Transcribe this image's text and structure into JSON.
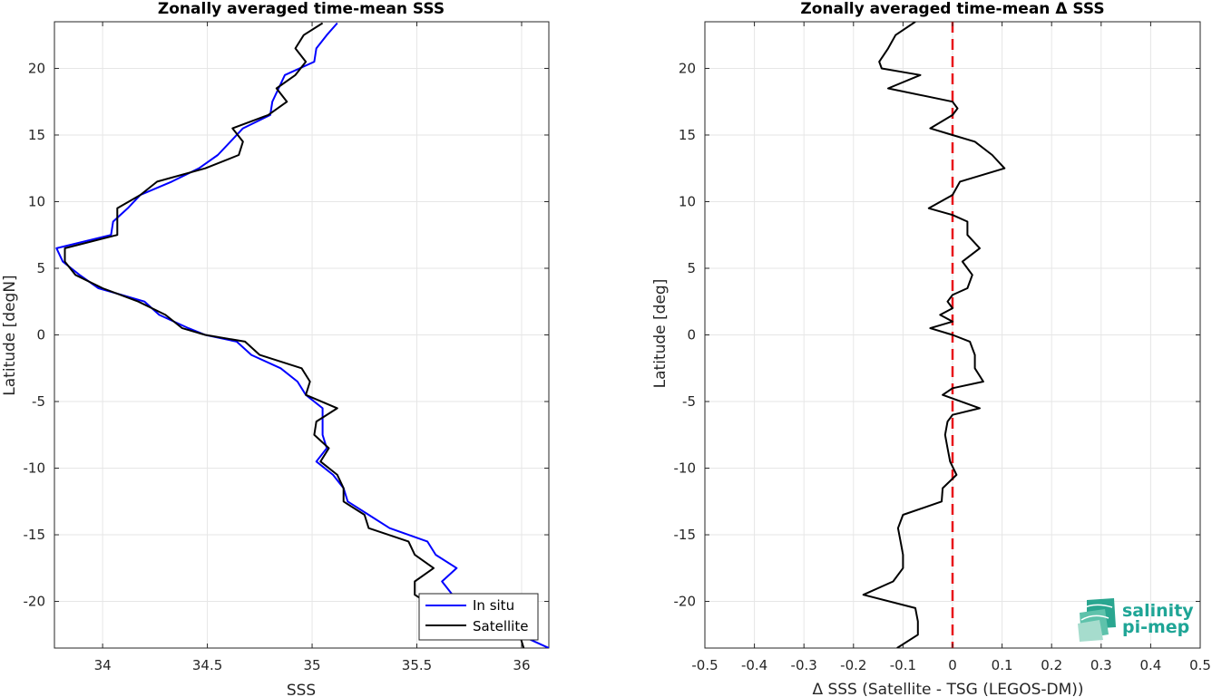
{
  "chart_data": [
    {
      "type": "line",
      "title": "Zonally averaged time-mean SSS",
      "xlabel": "SSS",
      "ylabel": "Latitude [degN]",
      "xlim": [
        33.77,
        36.13
      ],
      "ylim": [
        -23.5,
        23.5
      ],
      "xticks": [
        34,
        34.5,
        35,
        35.5,
        36
      ],
      "xtick_labels": [
        "34",
        "34.5",
        "35",
        "35.5",
        "36"
      ],
      "yticks": [
        -20,
        -15,
        -10,
        -5,
        0,
        5,
        10,
        15,
        20
      ],
      "ytick_labels": [
        "-20",
        "-15",
        "-10",
        "-5",
        "0",
        "5",
        "10",
        "15",
        "20"
      ],
      "grid": true,
      "legend": "bottom-right",
      "series": [
        {
          "name": "In situ",
          "color": "#0000ff",
          "points": [
            [
              35.12,
              23.4
            ],
            [
              35.07,
              22.5
            ],
            [
              35.02,
              21.5
            ],
            [
              35.01,
              20.5
            ],
            [
              34.87,
              19.5
            ],
            [
              34.84,
              18.5
            ],
            [
              34.81,
              17.5
            ],
            [
              34.8,
              16.5
            ],
            [
              34.67,
              15.5
            ],
            [
              34.61,
              14.5
            ],
            [
              34.55,
              13.5
            ],
            [
              34.46,
              12.5
            ],
            [
              34.33,
              11.5
            ],
            [
              34.18,
              10.5
            ],
            [
              34.12,
              9.5
            ],
            [
              34.05,
              8.5
            ],
            [
              34.04,
              7.5
            ],
            [
              33.78,
              6.5
            ],
            [
              33.81,
              5.5
            ],
            [
              33.89,
              4.5
            ],
            [
              33.98,
              3.5
            ],
            [
              34.2,
              2.5
            ],
            [
              34.27,
              1.5
            ],
            [
              34.41,
              0.5
            ],
            [
              34.49,
              0.0
            ],
            [
              34.64,
              -0.5
            ],
            [
              34.71,
              -1.5
            ],
            [
              34.85,
              -2.5
            ],
            [
              34.93,
              -3.5
            ],
            [
              34.97,
              -4.5
            ],
            [
              35.05,
              -5.5
            ],
            [
              35.05,
              -6.5
            ],
            [
              35.05,
              -7.5
            ],
            [
              35.07,
              -8.5
            ],
            [
              35.02,
              -9.5
            ],
            [
              35.1,
              -10.5
            ],
            [
              35.15,
              -11.5
            ],
            [
              35.17,
              -12.5
            ],
            [
              35.27,
              -13.5
            ],
            [
              35.37,
              -14.5
            ],
            [
              35.55,
              -15.5
            ],
            [
              35.59,
              -16.5
            ],
            [
              35.69,
              -17.5
            ],
            [
              35.62,
              -18.5
            ],
            [
              35.67,
              -19.5
            ],
            [
              35.74,
              -20.5
            ],
            [
              35.88,
              -21.5
            ],
            [
              35.99,
              -22.5
            ],
            [
              36.13,
              -23.5
            ]
          ]
        },
        {
          "name": "Satellite",
          "color": "#000000",
          "points": [
            [
              35.05,
              23.4
            ],
            [
              34.96,
              22.5
            ],
            [
              34.92,
              21.5
            ],
            [
              34.97,
              20.5
            ],
            [
              34.92,
              19.5
            ],
            [
              34.83,
              18.5
            ],
            [
              34.88,
              17.5
            ],
            [
              34.79,
              16.5
            ],
            [
              34.62,
              15.5
            ],
            [
              34.67,
              14.5
            ],
            [
              34.65,
              13.5
            ],
            [
              34.49,
              12.5
            ],
            [
              34.26,
              11.5
            ],
            [
              34.18,
              10.5
            ],
            [
              34.07,
              9.5
            ],
            [
              34.07,
              8.5
            ],
            [
              34.07,
              7.5
            ],
            [
              33.82,
              6.5
            ],
            [
              33.82,
              5.5
            ],
            [
              33.87,
              4.5
            ],
            [
              34.0,
              3.5
            ],
            [
              34.17,
              2.5
            ],
            [
              34.3,
              1.5
            ],
            [
              34.38,
              0.5
            ],
            [
              34.49,
              0.0
            ],
            [
              34.68,
              -0.5
            ],
            [
              34.75,
              -1.5
            ],
            [
              34.95,
              -2.5
            ],
            [
              34.99,
              -3.5
            ],
            [
              34.97,
              -4.5
            ],
            [
              35.12,
              -5.5
            ],
            [
              35.02,
              -6.5
            ],
            [
              35.01,
              -7.5
            ],
            [
              35.08,
              -8.5
            ],
            [
              35.04,
              -9.5
            ],
            [
              35.12,
              -10.5
            ],
            [
              35.15,
              -11.5
            ],
            [
              35.15,
              -12.5
            ],
            [
              35.25,
              -13.5
            ],
            [
              35.27,
              -14.5
            ],
            [
              35.46,
              -15.5
            ],
            [
              35.49,
              -16.5
            ],
            [
              35.58,
              -17.5
            ],
            [
              35.49,
              -18.5
            ],
            [
              35.49,
              -19.5
            ],
            [
              35.59,
              -20.5
            ],
            [
              35.77,
              -21.5
            ],
            [
              35.99,
              -22.5
            ],
            [
              36.01,
              -23.5
            ]
          ]
        }
      ]
    },
    {
      "type": "line",
      "title": "Zonally averaged time-mean Δ SSS",
      "xlabel": "Δ SSS (Satellite - TSG (LEGOS-DM))",
      "ylabel": "Latitude [deg]",
      "xlim": [
        -0.5,
        0.5
      ],
      "ylim": [
        -23.5,
        23.5
      ],
      "xticks": [
        -0.5,
        -0.4,
        -0.3,
        -0.2,
        -0.1,
        0,
        0.1,
        0.2,
        0.3,
        0.4,
        0.5
      ],
      "xtick_labels": [
        "-0.5",
        "-0.4",
        "-0.3",
        "-0.2",
        "-0.1",
        "0",
        "0.1",
        "0.2",
        "0.3",
        "0.4",
        "0.5"
      ],
      "yticks": [
        -20,
        -15,
        -10,
        -5,
        0,
        5,
        10,
        15,
        20
      ],
      "ytick_labels": [
        "-20",
        "-15",
        "-10",
        "-5",
        "0",
        "5",
        "10",
        "15",
        "20"
      ],
      "grid": true,
      "zero_line": {
        "x": 0,
        "color": "#e8141a",
        "style": "dashed"
      },
      "series": [
        {
          "color": "#000000",
          "points": [
            [
              -0.075,
              23.5
            ],
            [
              -0.115,
              22.5
            ],
            [
              -0.13,
              21.5
            ],
            [
              -0.148,
              20.5
            ],
            [
              -0.143,
              20.0
            ],
            [
              -0.065,
              19.5
            ],
            [
              -0.13,
              18.5
            ],
            [
              0.0,
              17.5
            ],
            [
              0.01,
              17.0
            ],
            [
              0.0,
              16.5
            ],
            [
              -0.045,
              15.5
            ],
            [
              0.0,
              15.0
            ],
            [
              0.045,
              14.5
            ],
            [
              0.08,
              13.5
            ],
            [
              0.105,
              12.5
            ],
            [
              0.015,
              11.5
            ],
            [
              0.0,
              10.5
            ],
            [
              -0.048,
              9.5
            ],
            [
              0.0,
              9.0
            ],
            [
              0.03,
              8.5
            ],
            [
              0.03,
              7.5
            ],
            [
              0.055,
              6.5
            ],
            [
              0.02,
              5.5
            ],
            [
              0.04,
              4.5
            ],
            [
              0.03,
              3.5
            ],
            [
              0.0,
              3.0
            ],
            [
              -0.01,
              2.5
            ],
            [
              0.0,
              2.0
            ],
            [
              -0.025,
              1.5
            ],
            [
              0.0,
              1.0
            ],
            [
              -0.045,
              0.5
            ],
            [
              0.0,
              0.0
            ],
            [
              0.035,
              -0.5
            ],
            [
              0.045,
              -1.5
            ],
            [
              0.045,
              -2.5
            ],
            [
              0.062,
              -3.5
            ],
            [
              0.0,
              -4.0
            ],
            [
              -0.02,
              -4.5
            ],
            [
              0.055,
              -5.5
            ],
            [
              0.0,
              -6.0
            ],
            [
              -0.01,
              -6.5
            ],
            [
              -0.015,
              -7.5
            ],
            [
              -0.01,
              -8.5
            ],
            [
              -0.005,
              -9.5
            ],
            [
              0.008,
              -10.5
            ],
            [
              -0.02,
              -11.5
            ],
            [
              -0.022,
              -12.5
            ],
            [
              -0.1,
              -13.5
            ],
            [
              -0.11,
              -14.5
            ],
            [
              -0.105,
              -15.5
            ],
            [
              -0.1,
              -16.5
            ],
            [
              -0.1,
              -17.5
            ],
            [
              -0.12,
              -18.5
            ],
            [
              -0.18,
              -19.5
            ],
            [
              -0.075,
              -20.5
            ],
            [
              -0.07,
              -21.5
            ],
            [
              -0.07,
              -22.5
            ],
            [
              -0.112,
              -23.5
            ]
          ]
        }
      ]
    }
  ],
  "logo": {
    "line1": "salinity",
    "line2": "pi-mep",
    "color": "#1fa596"
  }
}
